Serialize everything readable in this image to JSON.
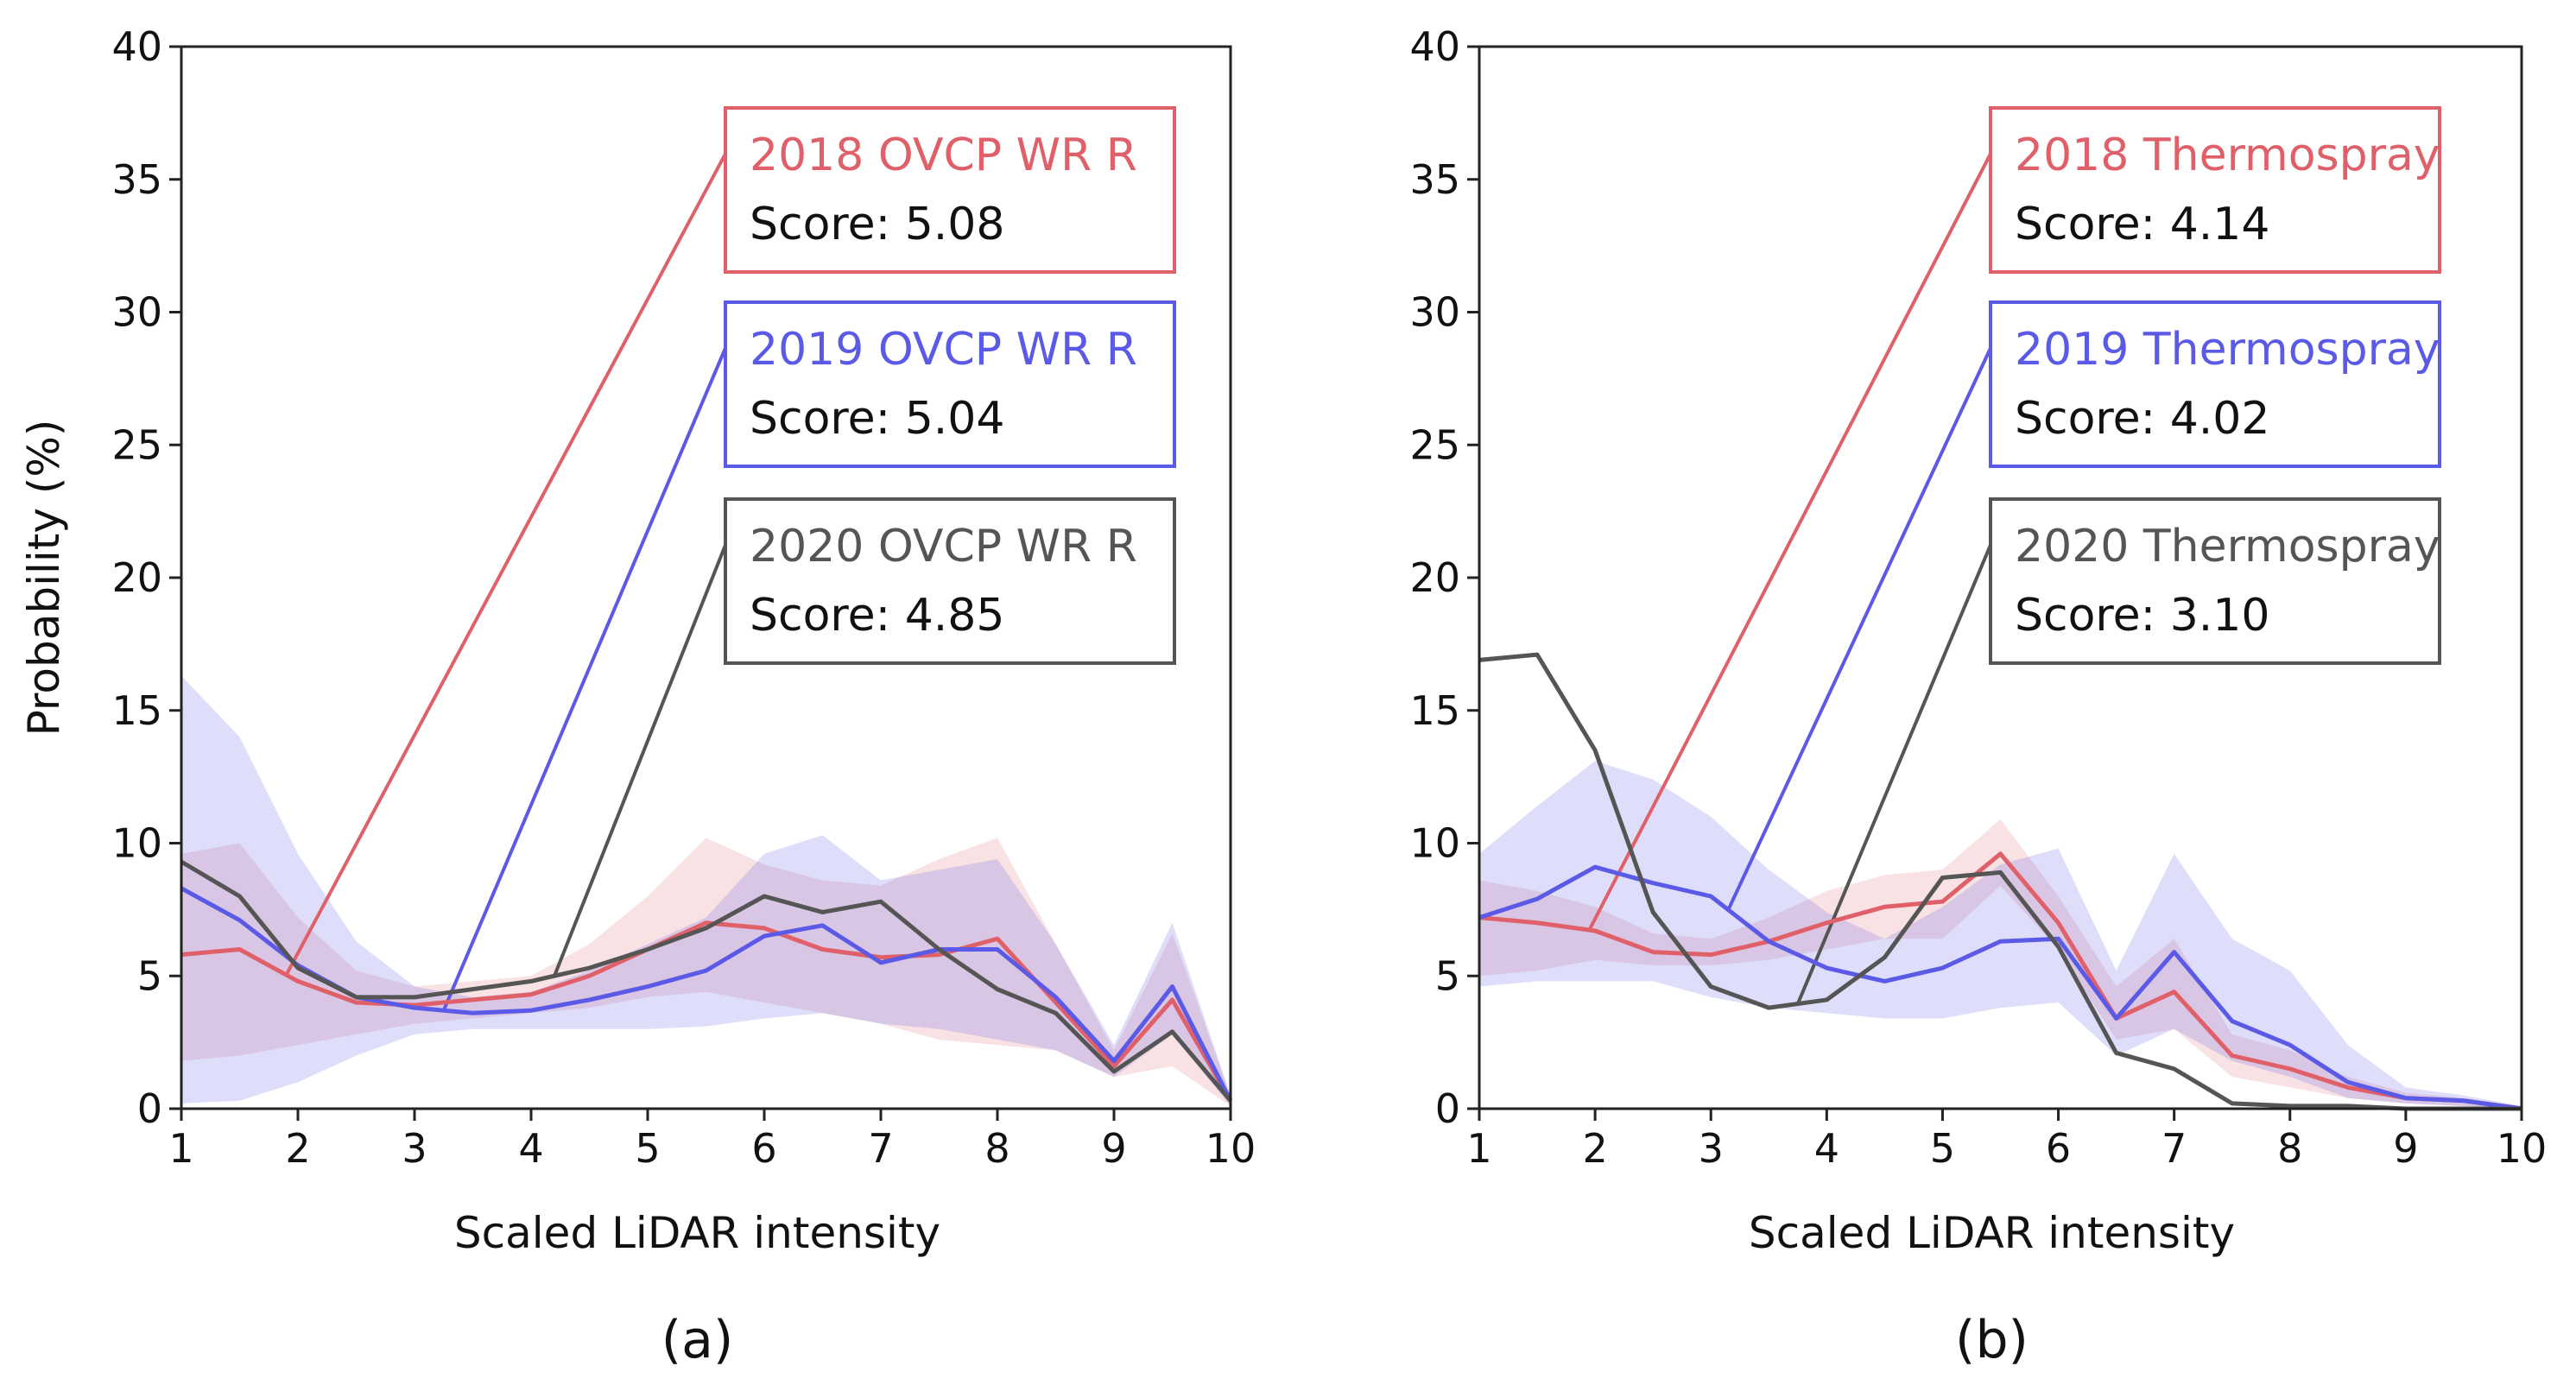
{
  "chart_data": [
    {
      "type": "line",
      "panel_label": "(a)",
      "xlabel": "Scaled LiDAR intensity",
      "ylabel": "Probability (%)",
      "xlim": [
        1,
        10
      ],
      "ylim": [
        0,
        40
      ],
      "xticks": [
        "1",
        "2",
        "3",
        "4",
        "5",
        "6",
        "7",
        "8",
        "9",
        "10"
      ],
      "yticks": [
        "0",
        "5",
        "10",
        "15",
        "20",
        "25",
        "30",
        "35",
        "40"
      ],
      "x": [
        1,
        1.5,
        2,
        2.5,
        3,
        3.5,
        4,
        4.5,
        5,
        5.5,
        6,
        6.5,
        7,
        7.5,
        8,
        8.5,
        9,
        9.5,
        10
      ],
      "series": [
        {
          "name": "2018 OVCP WR R",
          "score_text": "Score: 5.08",
          "color": "#e0606a",
          "leader_x": 1.9,
          "values": [
            5.8,
            6.0,
            4.8,
            4.0,
            3.9,
            4.1,
            4.3,
            5.0,
            6.0,
            7.0,
            6.8,
            6.0,
            5.7,
            5.8,
            6.4,
            4.0,
            1.6,
            4.1,
            0.3
          ],
          "band_lower": [
            1.8,
            2.0,
            2.4,
            2.8,
            3.2,
            3.4,
            3.6,
            3.8,
            4.2,
            4.4,
            4.0,
            3.6,
            3.2,
            2.6,
            2.4,
            2.2,
            1.2,
            1.6,
            0.1
          ],
          "band_upper": [
            9.6,
            10.0,
            7.2,
            5.2,
            4.6,
            4.8,
            5.0,
            6.2,
            8.0,
            10.2,
            9.2,
            8.6,
            8.4,
            9.4,
            10.2,
            6.2,
            2.2,
            6.6,
            0.5
          ]
        },
        {
          "name": "2019 OVCP WR R",
          "score_text": "Score: 5.04",
          "color": "#5a5ae6",
          "leader_x": 3.25,
          "values": [
            8.3,
            7.1,
            5.4,
            4.2,
            3.8,
            3.6,
            3.7,
            4.1,
            4.6,
            5.2,
            6.5,
            6.9,
            5.5,
            6.0,
            6.0,
            4.2,
            1.8,
            4.6,
            0.3
          ],
          "band_lower": [
            0.2,
            0.3,
            1.0,
            2.0,
            2.8,
            3.0,
            3.0,
            3.0,
            3.0,
            3.1,
            3.4,
            3.6,
            3.2,
            3.0,
            2.6,
            2.2,
            1.2,
            2.8,
            0.1
          ],
          "band_upper": [
            16.3,
            14.0,
            9.6,
            6.3,
            4.6,
            4.2,
            4.4,
            5.2,
            6.2,
            7.2,
            9.6,
            10.3,
            8.6,
            9.0,
            9.4,
            6.2,
            2.4,
            7.0,
            0.5
          ]
        },
        {
          "name": "2020 OVCP WR R",
          "score_text": "Score: 4.85",
          "color": "#555555",
          "leader_x": 4.2,
          "values": [
            9.3,
            8.0,
            5.3,
            4.2,
            4.2,
            4.5,
            4.8,
            5.3,
            6.0,
            6.8,
            8.0,
            7.4,
            7.8,
            6.0,
            4.5,
            3.6,
            1.4,
            2.9,
            0.3
          ],
          "band_lower": [],
          "band_upper": []
        }
      ]
    },
    {
      "type": "line",
      "panel_label": "(b)",
      "xlabel": "Scaled LiDAR intensity",
      "ylabel": "",
      "xlim": [
        1,
        10
      ],
      "ylim": [
        0,
        40
      ],
      "xticks": [
        "1",
        "2",
        "3",
        "4",
        "5",
        "6",
        "7",
        "8",
        "9",
        "10"
      ],
      "yticks": [
        "0",
        "5",
        "10",
        "15",
        "20",
        "25",
        "30",
        "35",
        "40"
      ],
      "x": [
        1,
        1.5,
        2,
        2.5,
        3,
        3.5,
        4,
        4.5,
        5,
        5.5,
        6,
        6.5,
        7,
        7.5,
        8,
        8.5,
        9,
        9.5,
        10
      ],
      "series": [
        {
          "name": "2018 Thermospray",
          "score_text": "Score: 4.14",
          "color": "#e0606a",
          "leader_x": 1.95,
          "values": [
            7.2,
            7.0,
            6.7,
            5.9,
            5.8,
            6.3,
            7.0,
            7.6,
            7.8,
            9.6,
            7.0,
            3.4,
            4.4,
            2.0,
            1.5,
            0.8,
            0.4,
            0.3,
            0.0
          ],
          "band_lower": [
            5.0,
            5.2,
            5.6,
            5.4,
            5.4,
            5.6,
            6.0,
            6.4,
            6.4,
            8.4,
            6.0,
            2.6,
            3.0,
            1.2,
            0.8,
            0.4,
            0.2,
            0.1,
            0.0
          ],
          "band_upper": [
            8.6,
            8.2,
            7.6,
            6.6,
            6.4,
            7.2,
            8.2,
            8.8,
            9.0,
            10.9,
            8.0,
            4.6,
            6.4,
            2.8,
            2.2,
            1.2,
            0.6,
            0.4,
            0.1
          ]
        },
        {
          "name": "2019 Thermospray",
          "score_text": "Score: 4.02",
          "color": "#5a5ae6",
          "leader_x": 3.15,
          "values": [
            7.2,
            7.9,
            9.1,
            8.5,
            8.0,
            6.3,
            5.3,
            4.8,
            5.3,
            6.3,
            6.4,
            3.4,
            5.9,
            3.3,
            2.4,
            1.0,
            0.4,
            0.3,
            0.0
          ],
          "band_lower": [
            4.6,
            4.8,
            4.8,
            4.8,
            4.2,
            3.8,
            3.6,
            3.4,
            3.4,
            3.8,
            4.0,
            2.0,
            3.0,
            1.8,
            1.2,
            0.4,
            0.2,
            0.1,
            0.0
          ],
          "band_upper": [
            9.6,
            11.4,
            13.1,
            12.4,
            11.0,
            9.0,
            7.4,
            6.4,
            7.6,
            9.2,
            9.8,
            5.2,
            9.6,
            6.4,
            5.2,
            2.4,
            0.8,
            0.5,
            0.1
          ]
        },
        {
          "name": "2020 Thermospray",
          "score_text": "Score: 3.10",
          "color": "#555555",
          "leader_x": 3.75,
          "values": [
            16.9,
            17.1,
            13.5,
            7.4,
            4.6,
            3.8,
            4.1,
            5.7,
            8.7,
            8.9,
            6.1,
            2.1,
            1.5,
            0.2,
            0.1,
            0.1,
            0.0,
            0.0,
            0.0
          ],
          "band_lower": [],
          "band_upper": []
        }
      ]
    }
  ]
}
